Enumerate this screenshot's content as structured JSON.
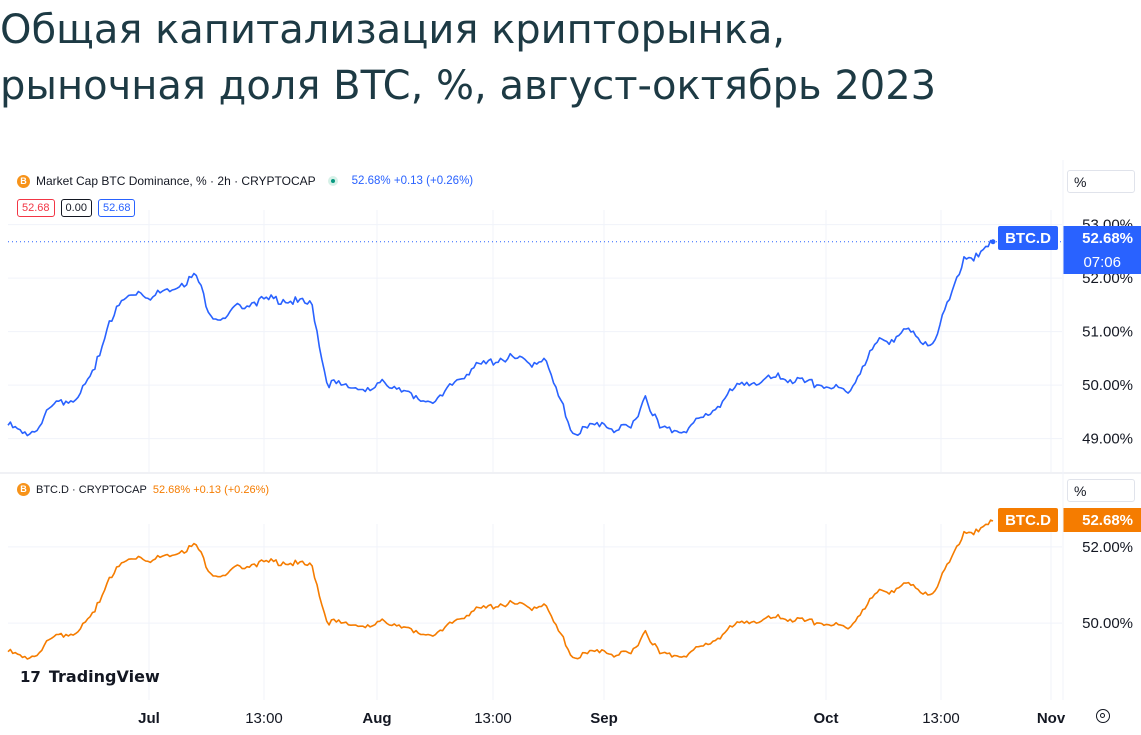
{
  "page": {
    "title_line1": "Общая капитализация крипторынка,",
    "title_line2": "рыночная доля BTC, %, август-октябрь 2023"
  },
  "top_panel": {
    "legend_symbol": "B",
    "legend_text": "Market Cap BTC Dominance, % · 2h · CRYPTOCAP",
    "legend_change": "52.68% +0.13 (+0.26%)",
    "ohlc_values": [
      "52.68",
      "0.00",
      "52.68"
    ],
    "scale_button": "%",
    "last_ticker": "BTC.D",
    "last_value": "52.68%",
    "countdown": "07:06"
  },
  "bottom_panel": {
    "legend_symbol": "B",
    "legend_text": "BTC.D · CRYPTOCAP",
    "legend_change": "52.68% +0.13 (+0.26%)",
    "scale_button": "%",
    "last_ticker": "BTC.D",
    "last_value": "52.68%"
  },
  "branding": {
    "logo_mark": "17",
    "logo_text": "TradingView"
  },
  "colors": {
    "blue": "#2962ff",
    "orange": "#f57c00",
    "red": "#f23645",
    "title": "#1d3a44",
    "grid": "#f0f3fa"
  },
  "icons": [
    "bitcoin-coin-icon",
    "live-dot-icon",
    "tradingview-logo-icon",
    "settings-gear-icon"
  ],
  "chart_data": [
    {
      "type": "line",
      "title": "Market Cap BTC Dominance, % · 2h · CRYPTOCAP",
      "xlabel": "",
      "ylabel": "%",
      "x_tick_labels": [
        "Jul",
        "13:00",
        "Aug",
        "13:00",
        "Sep",
        "Oct",
        "13:00",
        "Nov"
      ],
      "y_tick_labels": [
        "53.00%",
        "52.00%",
        "51.00%",
        "50.00%",
        "49.00%"
      ],
      "ylim": [
        48.6,
        53.05
      ],
      "grid": true,
      "series": [
        {
          "name": "BTC.D",
          "values": [
            49.25,
            49.1,
            49.15,
            49.6,
            49.7,
            49.85,
            50.3,
            51.2,
            51.6,
            51.75,
            51.65,
            51.8,
            51.9,
            52.05,
            51.3,
            51.25,
            51.5,
            51.55,
            51.6,
            51.6,
            51.55,
            51.5,
            50.05,
            50.0,
            49.95,
            49.9,
            50.05,
            49.95,
            49.75,
            49.7,
            49.8,
            50.1,
            50.3,
            50.4,
            50.5,
            50.5,
            50.4,
            50.5,
            49.8,
            49.1,
            49.2,
            49.3,
            49.15,
            49.2,
            49.8,
            49.2,
            49.15,
            49.2,
            49.4,
            49.6,
            49.9,
            50.05,
            50.05,
            50.15,
            50.1,
            50.05,
            50.0,
            49.95,
            49.85,
            50.35,
            50.8,
            50.85,
            51.05,
            50.8,
            50.85,
            51.6,
            52.4,
            52.4,
            52.68
          ]
        }
      ]
    },
    {
      "type": "line",
      "title": "BTC.D · CRYPTOCAP",
      "xlabel": "",
      "ylabel": "%",
      "x_tick_labels": [
        "Jul",
        "13:00",
        "Aug",
        "13:00",
        "Sep",
        "Oct",
        "13:00",
        "Nov"
      ],
      "y_tick_labels": [
        "52.00%",
        "50.00%"
      ],
      "ylim": [
        48.9,
        53.1
      ],
      "grid": true,
      "series": [
        {
          "name": "BTC.D",
          "values": [
            49.25,
            49.1,
            49.15,
            49.6,
            49.7,
            49.85,
            50.3,
            51.2,
            51.6,
            51.75,
            51.65,
            51.8,
            51.9,
            52.05,
            51.3,
            51.25,
            51.5,
            51.55,
            51.6,
            51.6,
            51.55,
            51.5,
            50.05,
            50.0,
            49.95,
            49.9,
            50.05,
            49.95,
            49.75,
            49.7,
            49.8,
            50.1,
            50.3,
            50.4,
            50.5,
            50.5,
            50.4,
            50.5,
            49.8,
            49.1,
            49.2,
            49.3,
            49.15,
            49.2,
            49.8,
            49.2,
            49.15,
            49.2,
            49.4,
            49.6,
            49.9,
            50.05,
            50.05,
            50.15,
            50.1,
            50.05,
            50.0,
            49.95,
            49.85,
            50.35,
            50.8,
            50.85,
            51.05,
            50.8,
            50.85,
            51.6,
            52.4,
            52.4,
            52.68
          ]
        }
      ]
    }
  ]
}
